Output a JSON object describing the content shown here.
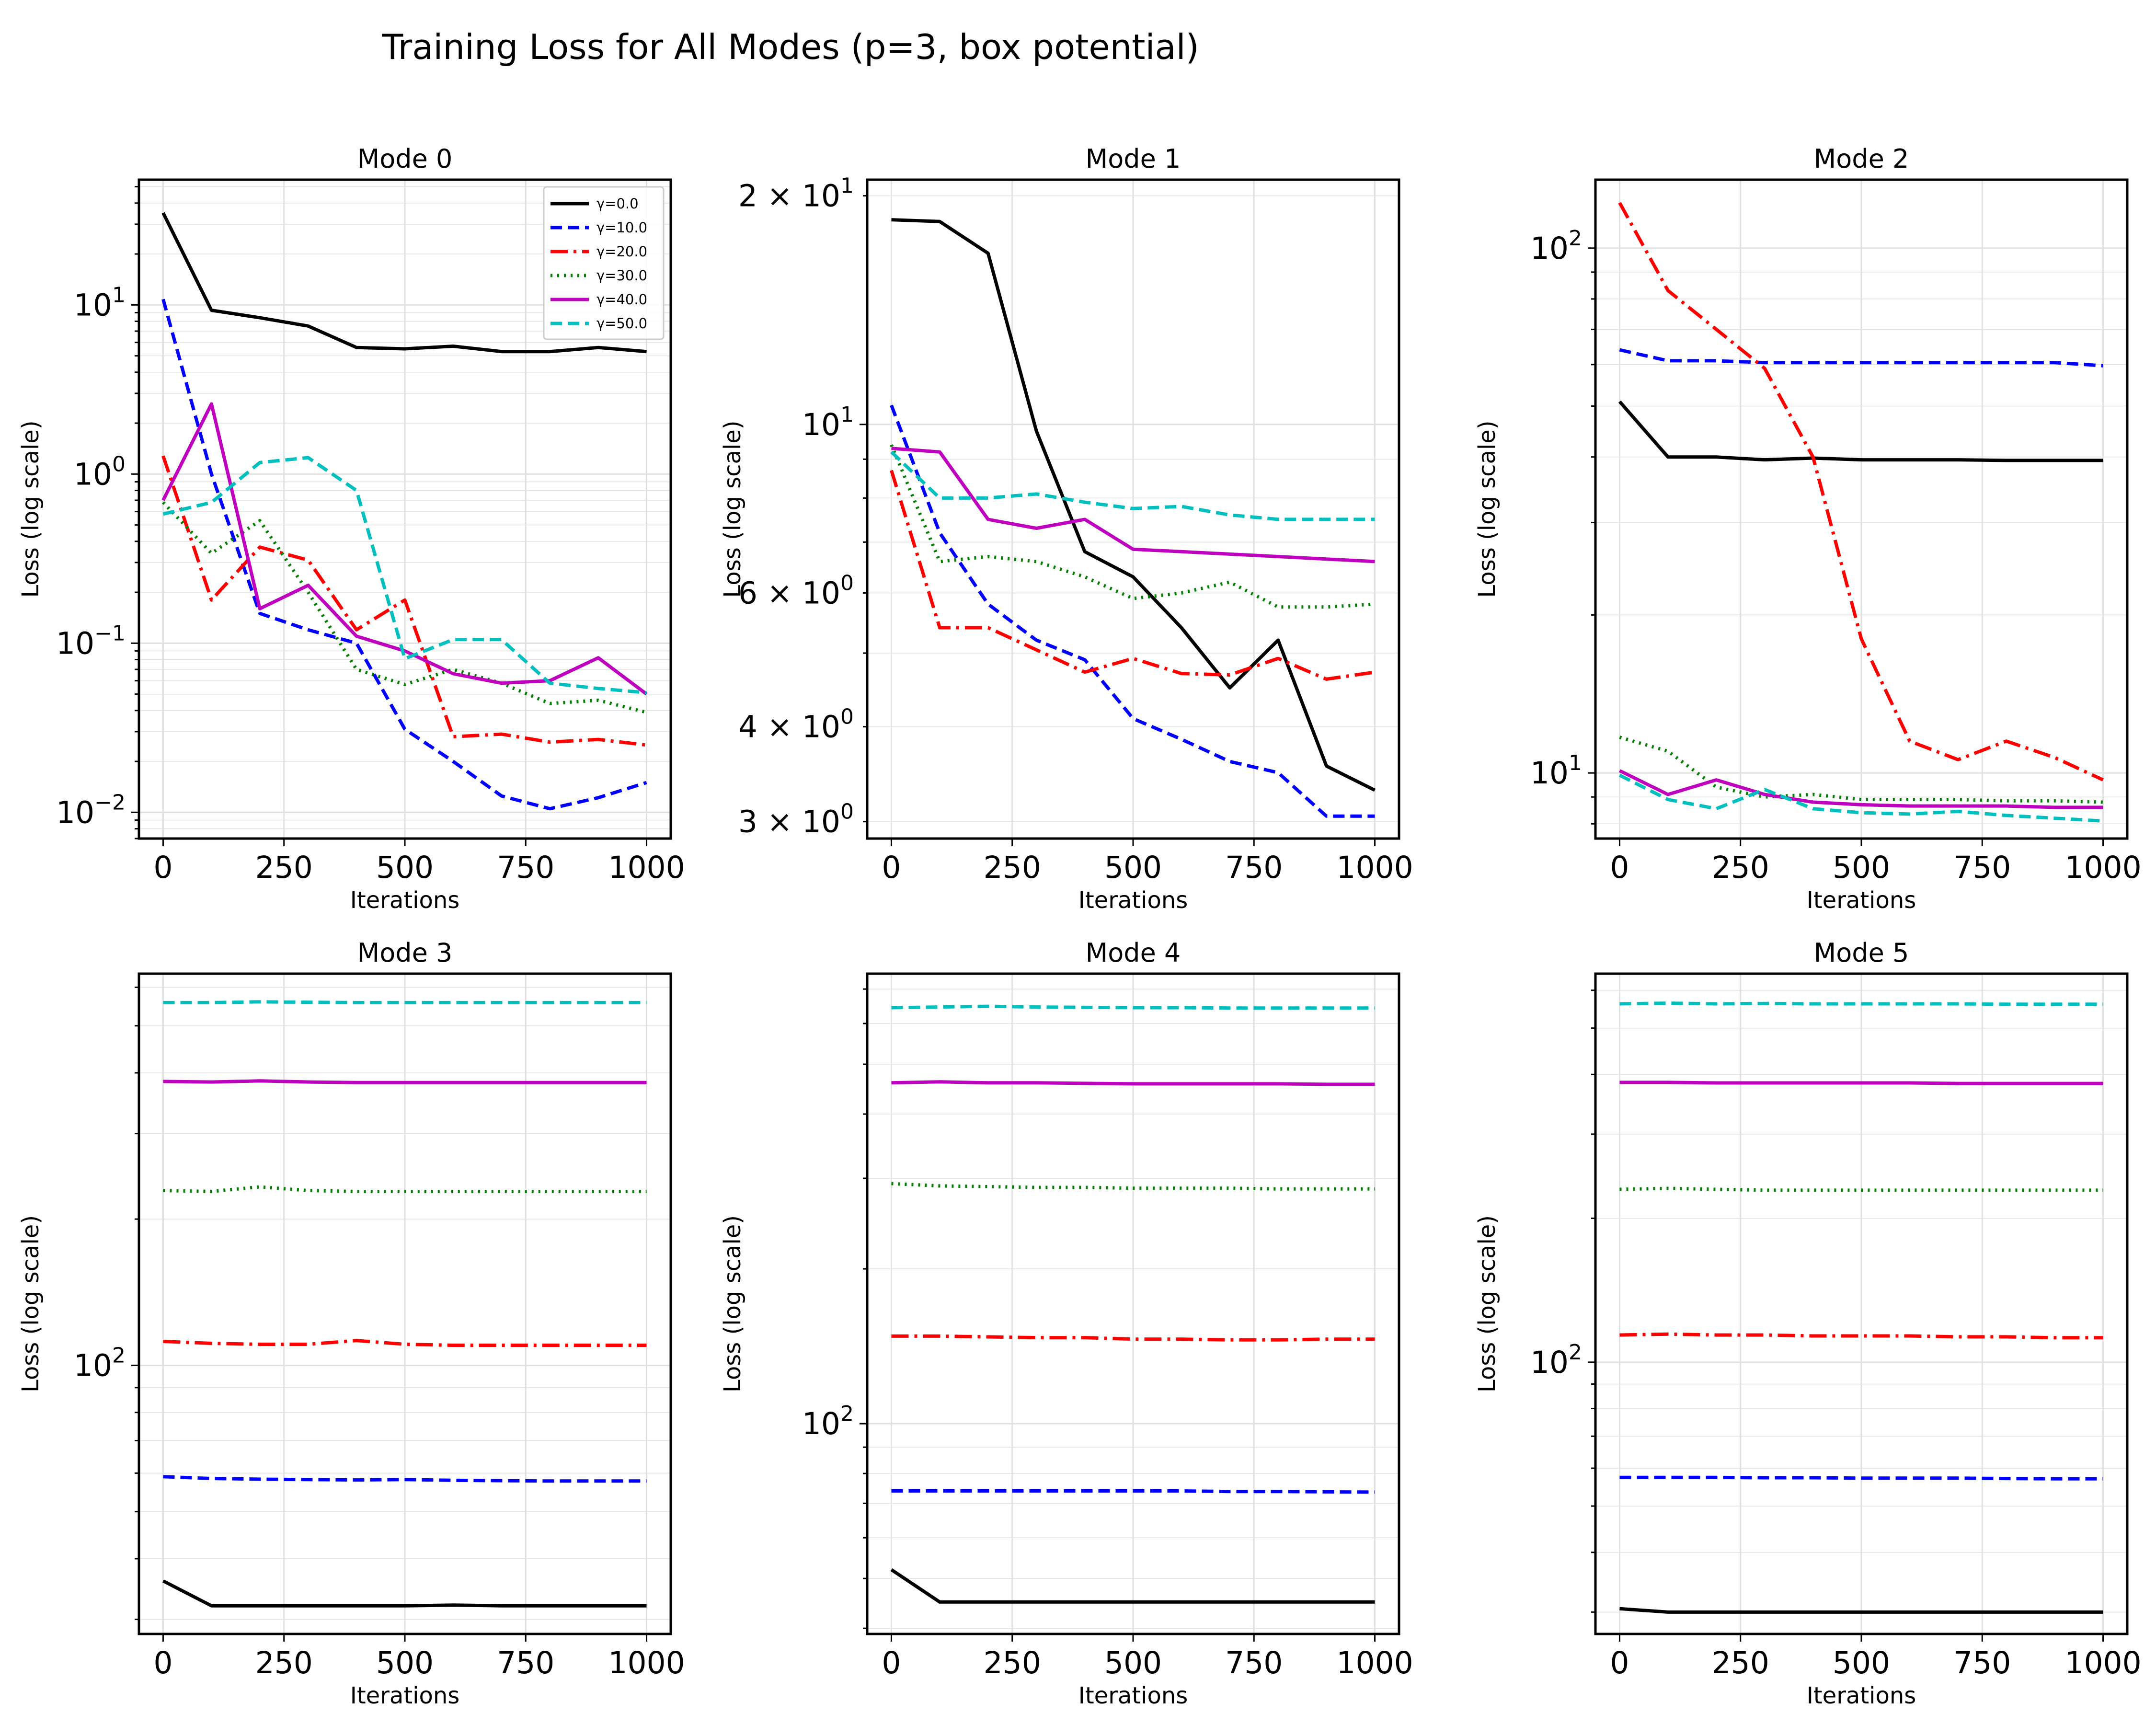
{
  "figure": {
    "title": "Training Loss for All Modes (p=3, box potential)"
  },
  "colors": {
    "g0": "#000000",
    "g10": "#0000ff",
    "g20": "#ff0000",
    "g30": "#007f00",
    "g40": "#bf00bf",
    "g50": "#00bfbf"
  },
  "chart_data": [
    {
      "type": "line",
      "title": "Mode 0",
      "xlabel": "Iterations",
      "ylabel": "Loss (log scale)",
      "yscale": "log",
      "xlim": [
        -50,
        1050
      ],
      "ylim": [
        0.007,
        55
      ],
      "xticks": [
        0,
        250,
        500,
        750,
        1000
      ],
      "yticks": [
        {
          "v": 0.01,
          "b": "10",
          "e": "−2"
        },
        {
          "v": 0.1,
          "b": "10",
          "e": "−1"
        },
        {
          "v": 1,
          "b": "10",
          "e": "0"
        },
        {
          "v": 10,
          "b": "10",
          "e": "1"
        }
      ],
      "legend": "upper right",
      "x": [
        0,
        100,
        200,
        300,
        400,
        500,
        600,
        700,
        800,
        900,
        1000
      ],
      "series": [
        {
          "name": "γ=0.0",
          "key": "g0",
          "values": [
            35,
            9.3,
            8.4,
            7.5,
            5.6,
            5.5,
            5.7,
            5.3,
            5.3,
            5.6,
            5.3
          ]
        },
        {
          "name": "γ=10.0",
          "key": "g10",
          "values": [
            10.8,
            1.0,
            0.15,
            0.12,
            0.1,
            0.031,
            0.02,
            0.0125,
            0.0105,
            0.0122,
            0.015
          ]
        },
        {
          "name": "γ=20.0",
          "key": "g20",
          "values": [
            1.28,
            0.18,
            0.37,
            0.31,
            0.12,
            0.18,
            0.028,
            0.029,
            0.026,
            0.027,
            0.025
          ]
        },
        {
          "name": "γ=30.0",
          "key": "g30",
          "values": [
            0.68,
            0.34,
            0.53,
            0.2,
            0.07,
            0.057,
            0.07,
            0.058,
            0.044,
            0.046,
            0.039
          ]
        },
        {
          "name": "γ=40.0",
          "key": "g40",
          "values": [
            0.7,
            2.6,
            0.16,
            0.22,
            0.11,
            0.09,
            0.066,
            0.058,
            0.06,
            0.082,
            0.05
          ]
        },
        {
          "name": "γ=50.0",
          "key": "g50",
          "values": [
            0.58,
            0.68,
            1.17,
            1.25,
            0.8,
            0.081,
            0.105,
            0.105,
            0.058,
            0.054,
            0.051
          ]
        }
      ]
    },
    {
      "type": "line",
      "title": "Mode 1",
      "xlabel": "Iterations",
      "ylabel": "Loss (log scale)",
      "yscale": "log",
      "xlim": [
        -50,
        1050
      ],
      "ylim": [
        2.85,
        21
      ],
      "xticks": [
        0,
        250,
        500,
        750,
        1000
      ],
      "yticks": [
        {
          "v": 3,
          "b": "3 × 10",
          "e": "0"
        },
        {
          "v": 4,
          "b": "4 × 10",
          "e": "0"
        },
        {
          "v": 6,
          "b": "6 × 10",
          "e": "0"
        },
        {
          "v": 10,
          "b": "10",
          "e": "1"
        },
        {
          "v": 20,
          "b": "2 × 10",
          "e": "1"
        }
      ],
      "x": [
        0,
        100,
        200,
        300,
        400,
        500,
        600,
        700,
        800,
        900,
        1000
      ],
      "series": [
        {
          "name": "γ=0.0",
          "key": "g0",
          "values": [
            18.6,
            18.5,
            16.8,
            9.8,
            6.8,
            6.3,
            5.4,
            4.5,
            5.2,
            3.55,
            3.3
          ]
        },
        {
          "name": "γ=10.0",
          "key": "g10",
          "values": [
            10.6,
            7.2,
            5.8,
            5.2,
            4.9,
            4.1,
            3.85,
            3.6,
            3.48,
            3.05,
            3.05
          ]
        },
        {
          "name": "γ=20.0",
          "key": "g20",
          "values": [
            8.7,
            5.4,
            5.4,
            5.05,
            4.72,
            4.92,
            4.7,
            4.68,
            4.92,
            4.62,
            4.72
          ]
        },
        {
          "name": "γ=30.0",
          "key": "g30",
          "values": [
            9.4,
            6.6,
            6.7,
            6.6,
            6.3,
            5.9,
            6.0,
            6.2,
            5.75,
            5.75,
            5.8
          ]
        },
        {
          "name": "γ=40.0",
          "key": "g40",
          "values": [
            9.3,
            9.2,
            7.5,
            7.3,
            7.5,
            6.85,
            6.8,
            6.75,
            6.7,
            6.65,
            6.6
          ]
        },
        {
          "name": "γ=50.0",
          "key": "g50",
          "values": [
            9.2,
            8.0,
            8.0,
            8.1,
            7.9,
            7.75,
            7.8,
            7.6,
            7.5,
            7.5,
            7.5
          ]
        }
      ]
    },
    {
      "type": "line",
      "title": "Mode 2",
      "xlabel": "Iterations",
      "ylabel": "Loss (log scale)",
      "yscale": "log",
      "xlim": [
        -50,
        1050
      ],
      "ylim": [
        7.5,
        135
      ],
      "xticks": [
        0,
        250,
        500,
        750,
        1000
      ],
      "yticks": [
        {
          "v": 10,
          "b": "10",
          "e": "1"
        },
        {
          "v": 100,
          "b": "10",
          "e": "2"
        }
      ],
      "x": [
        0,
        100,
        200,
        300,
        400,
        500,
        600,
        700,
        800,
        900,
        1000
      ],
      "series": [
        {
          "name": "γ=0.0",
          "key": "g0",
          "values": [
            51,
            40,
            40,
            39.5,
            39.8,
            39.5,
            39.5,
            39.5,
            39.4,
            39.4,
            39.4
          ]
        },
        {
          "name": "γ=10.0",
          "key": "g10",
          "values": [
            64,
            61,
            61,
            60.5,
            60.5,
            60.5,
            60.5,
            60.5,
            60.5,
            60.5,
            59.7
          ]
        },
        {
          "name": "γ=20.0",
          "key": "g20",
          "values": [
            122,
            83,
            70,
            59,
            40,
            18,
            11.5,
            10.6,
            11.5,
            10.7,
            9.7
          ]
        },
        {
          "name": "γ=30.0",
          "key": "g30",
          "values": [
            11.7,
            11,
            9.4,
            9.0,
            9.1,
            8.9,
            8.9,
            8.9,
            8.85,
            8.85,
            8.8
          ]
        },
        {
          "name": "γ=40.0",
          "key": "g40",
          "values": [
            10.1,
            9.1,
            9.7,
            9.1,
            8.8,
            8.7,
            8.65,
            8.65,
            8.65,
            8.6,
            8.6
          ]
        },
        {
          "name": "γ=50.0",
          "key": "g50",
          "values": [
            9.9,
            8.9,
            8.55,
            9.3,
            8.55,
            8.4,
            8.35,
            8.45,
            8.3,
            8.2,
            8.1
          ]
        }
      ]
    },
    {
      "type": "line",
      "title": "Mode 3",
      "xlabel": "Iterations",
      "ylabel": "Loss (log scale)",
      "yscale": "log",
      "xlim": [
        -50,
        1050
      ],
      "ylim": [
        28,
        640
      ],
      "xticks": [
        0,
        250,
        500,
        750,
        1000
      ],
      "yticks": [
        {
          "v": 100,
          "b": "10",
          "e": "2"
        }
      ],
      "x": [
        0,
        100,
        200,
        300,
        400,
        500,
        600,
        700,
        800,
        900,
        1000
      ],
      "series": [
        {
          "name": "γ=0.0",
          "key": "g0",
          "values": [
            36,
            32,
            32,
            32,
            32,
            32,
            32.1,
            32,
            32,
            32,
            32
          ]
        },
        {
          "name": "γ=10.0",
          "key": "g10",
          "values": [
            59,
            58.5,
            58.3,
            58.2,
            58.1,
            58.2,
            58,
            57.9,
            57.8,
            57.8,
            57.8
          ]
        },
        {
          "name": "γ=20.0",
          "key": "g20",
          "values": [
            112,
            111,
            110.5,
            110.5,
            112.5,
            110.5,
            110,
            110,
            110,
            110,
            110
          ]
        },
        {
          "name": "γ=30.0",
          "key": "g30",
          "values": [
            229,
            228,
            233,
            229,
            228,
            228,
            228,
            228,
            228,
            228,
            228
          ]
        },
        {
          "name": "γ=40.0",
          "key": "g40",
          "values": [
            384,
            383,
            385,
            383,
            382,
            382,
            382,
            382,
            382,
            382,
            382
          ]
        },
        {
          "name": "γ=50.0",
          "key": "g50",
          "values": [
            558,
            558,
            560,
            559,
            558,
            558,
            558,
            558,
            558,
            558,
            558
          ]
        }
      ]
    },
    {
      "type": "line",
      "title": "Mode 4",
      "xlabel": "Iterations",
      "ylabel": "Loss (log scale)",
      "yscale": "log",
      "xlim": [
        -50,
        1050
      ],
      "ylim": [
        39,
        750
      ],
      "xticks": [
        0,
        250,
        500,
        750,
        1000
      ],
      "yticks": [
        {
          "v": 100,
          "b": "10",
          "e": "2"
        }
      ],
      "x": [
        0,
        100,
        200,
        300,
        400,
        500,
        600,
        700,
        800,
        900,
        1000
      ],
      "series": [
        {
          "name": "γ=0.0",
          "key": "g0",
          "values": [
            52,
            45,
            45,
            45,
            45,
            45,
            45,
            45,
            45,
            45,
            45
          ]
        },
        {
          "name": "γ=10.0",
          "key": "g10",
          "values": [
            74,
            74,
            74,
            74,
            74,
            74,
            74,
            73.8,
            73.8,
            73.7,
            73.6
          ]
        },
        {
          "name": "γ=20.0",
          "key": "g20",
          "values": [
            148,
            148,
            147.5,
            147,
            147,
            146,
            146,
            145.5,
            145.5,
            146,
            146
          ]
        },
        {
          "name": "γ=30.0",
          "key": "g30",
          "values": [
            293,
            290,
            289,
            288,
            288,
            287,
            287,
            287,
            286,
            286,
            286
          ]
        },
        {
          "name": "γ=40.0",
          "key": "g40",
          "values": [
            460,
            462,
            460,
            460,
            459,
            458,
            458,
            458,
            458,
            457,
            457
          ]
        },
        {
          "name": "γ=50.0",
          "key": "g50",
          "values": [
            644,
            646,
            648,
            646,
            645,
            644,
            644,
            643,
            643,
            643,
            643
          ]
        }
      ]
    },
    {
      "type": "line",
      "title": "Mode 5",
      "xlabel": "Iterations",
      "ylabel": "Loss (log scale)",
      "yscale": "log",
      "xlim": [
        -50,
        1050
      ],
      "ylim": [
        27,
        650
      ],
      "xticks": [
        0,
        250,
        500,
        750,
        1000
      ],
      "yticks": [
        {
          "v": 100,
          "b": "10",
          "e": "2"
        }
      ],
      "x": [
        0,
        100,
        200,
        300,
        400,
        500,
        600,
        700,
        800,
        900,
        1000
      ],
      "series": [
        {
          "name": "γ=0.0",
          "key": "g0",
          "values": [
            30.5,
            30,
            30,
            30,
            30,
            30,
            30,
            30,
            30,
            30,
            30
          ]
        },
        {
          "name": "γ=10.0",
          "key": "g10",
          "values": [
            57.4,
            57.4,
            57.4,
            57.3,
            57.3,
            57.2,
            57.2,
            57.2,
            57.1,
            57,
            57
          ]
        },
        {
          "name": "γ=20.0",
          "key": "g20",
          "values": [
            114,
            114.5,
            114,
            114,
            113.5,
            113.5,
            113.5,
            113,
            113,
            112.5,
            112.5
          ]
        },
        {
          "name": "γ=30.0",
          "key": "g30",
          "values": [
            230,
            231,
            230,
            229,
            229,
            229,
            229,
            229,
            229,
            229,
            229
          ]
        },
        {
          "name": "γ=40.0",
          "key": "g40",
          "values": [
            385,
            385,
            384,
            384,
            384,
            384,
            384,
            383,
            383,
            383,
            383
          ]
        },
        {
          "name": "γ=50.0",
          "key": "g50",
          "values": [
            562,
            564,
            562,
            563,
            562,
            562,
            562,
            562,
            561,
            561,
            561
          ]
        }
      ]
    }
  ]
}
